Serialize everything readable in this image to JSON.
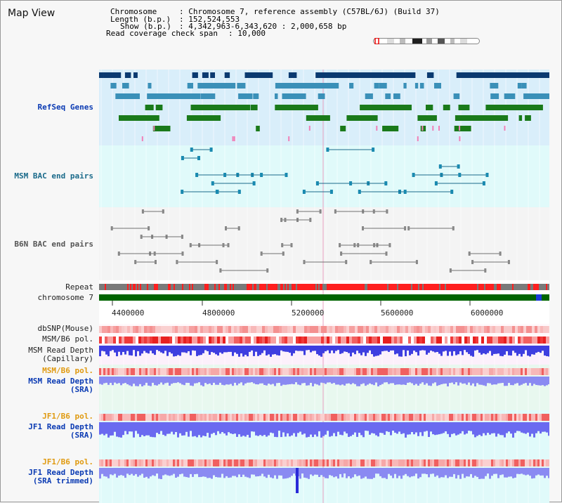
{
  "title": "Map View",
  "info": {
    "chromosome_label": "Chromosome",
    "chromosome_value": ": Chromosome 7, reference assembly (C57BL/6J) (Build 37)",
    "length_label": "Length (b.p.)",
    "length_value": ": 152,524,553",
    "show_label": "Show (b.p.)",
    "show_value": ": 4,342,963-6,343,620 : 2,000,658 bp",
    "coverage_label": "Read coverage check span",
    "coverage_value": ": 10,000"
  },
  "tracks": {
    "refseq": "RefSeq Genes",
    "msm_bac": "MSM BAC end pairs",
    "b6n_bac": "B6N BAC end pairs",
    "repeat": "Repeat",
    "chromosome": "chromosome 7",
    "dbsnp": "dbSNP(Mouse)",
    "msm_b6_pol_1": "MSM/B6 pol.",
    "msm_read_depth_cap": "MSM Read Depth\n(Capillary)",
    "msm_b6_pol_2": "MSM/B6 pol.",
    "msm_read_depth_sra": "MSM Read Depth\n(SRA)",
    "jf1_b6_pol_1": "JF1/B6 pol.",
    "jf1_read_depth_sra": "JF1 Read Depth\n(SRA)",
    "jf1_b6_pol_2": "JF1/B6 pol.",
    "jf1_read_depth_trim": "JF1 Read Depth\n(SRA trimmed)"
  },
  "axis_ticks": [
    "4400000",
    "4800000",
    "5200000",
    "5600000",
    "6000000"
  ],
  "colors": {
    "refseq_bg": "#d9eefa",
    "bac_bg": "#e0fafa",
    "navy_gene": "#0b3a70",
    "steel_gene": "#3a90b8",
    "green_gene": "#1a7a1a",
    "repeat_red": "#ff2020",
    "chrom_green": "#006400",
    "snp_pink": "#f6a0a0",
    "depth_blue": "#5a5aef"
  }
}
